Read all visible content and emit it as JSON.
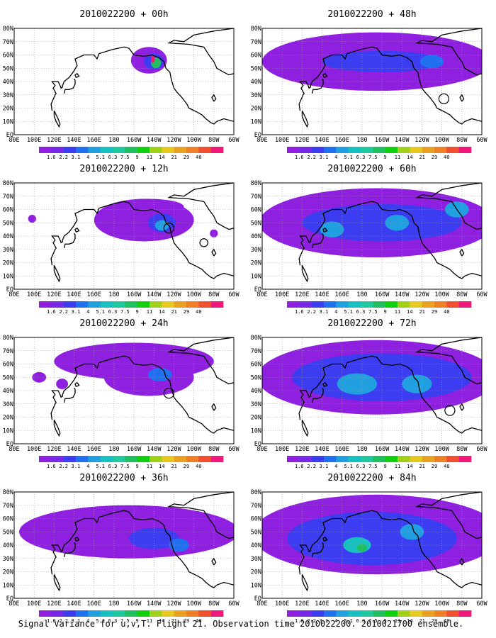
{
  "figure": {
    "caption": "Signal Variance for u,v,T. Flight 21. Observation time 2010022200. 2010021700 ensemble."
  },
  "colors": {
    "land_outline": "#000000",
    "grid": "#9a9a9a",
    "levels": [
      "#9020e0",
      "#7628e6",
      "#3c3cf0",
      "#2070f0",
      "#20a0e0",
      "#18c0c0",
      "#20c8a0",
      "#20c060",
      "#10d010",
      "#a0d018",
      "#e6c81e",
      "#eaa020",
      "#f08028",
      "#f05030",
      "#f01878"
    ]
  },
  "colorbar": {
    "labels": [
      "1.6",
      "2.2",
      "3.1",
      "4",
      "5.1",
      "6.3",
      "7.5",
      "9",
      "11",
      "14",
      "21",
      "29",
      "40"
    ]
  },
  "axes": {
    "x_ticks": [
      "80E",
      "100E",
      "120E",
      "140E",
      "160E",
      "180",
      "160W",
      "140W",
      "120W",
      "100W",
      "80W",
      "60W"
    ],
    "y_ticks": [
      "80N",
      "70N",
      "60N",
      "50N",
      "40N",
      "30N",
      "20N",
      "10N",
      "EQ"
    ]
  },
  "chart_data": [
    {
      "type": "heatmap",
      "title": "2010022200 + 00h",
      "lead_hours": 0,
      "x_range": [
        "80E",
        "60W"
      ],
      "y_range": [
        "EQ",
        "80N"
      ],
      "max_level": "40",
      "blobs": [
        {
          "lon": 215,
          "lat": 56,
          "rlon": 18,
          "rlat": 10,
          "level": 0
        },
        {
          "lon": 220,
          "lat": 55,
          "rlon": 10,
          "rlat": 6,
          "level": 2
        },
        {
          "lon": 222,
          "lat": 54,
          "rlon": 5,
          "rlat": 4,
          "level": 7
        },
        {
          "lon": 219,
          "lat": 57,
          "rlon": 2,
          "rlat": 3,
          "level": 14
        }
      ],
      "circles": []
    },
    {
      "type": "heatmap",
      "title": "2010022200 + 12h",
      "lead_hours": 12,
      "x_range": [
        "80E",
        "60W"
      ],
      "y_range": [
        "EQ",
        "80N"
      ],
      "blobs": [
        {
          "lon": 210,
          "lat": 52,
          "rlon": 50,
          "rlat": 16,
          "level": 0
        },
        {
          "lon": 215,
          "lat": 62,
          "rlon": 35,
          "rlat": 6,
          "level": 0
        },
        {
          "lon": 228,
          "lat": 50,
          "rlon": 14,
          "rlat": 7,
          "level": 2
        },
        {
          "lon": 228,
          "lat": 48,
          "rlon": 7,
          "rlat": 4,
          "level": 4
        },
        {
          "lon": 98,
          "lat": 53,
          "rlon": 4,
          "rlat": 3,
          "level": 0
        },
        {
          "lon": 280,
          "lat": 42,
          "rlon": 4,
          "rlat": 3,
          "level": 0
        }
      ],
      "circles": [
        {
          "lon": 235,
          "lat": 46,
          "r": 5
        },
        {
          "lon": 270,
          "lat": 35,
          "r": 4
        }
      ]
    },
    {
      "type": "heatmap",
      "title": "2010022200 + 24h",
      "lead_hours": 24,
      "x_range": [
        "80E",
        "60W"
      ],
      "y_range": [
        "EQ",
        "80N"
      ],
      "blobs": [
        {
          "lon": 200,
          "lat": 62,
          "rlon": 80,
          "rlat": 14,
          "level": 0
        },
        {
          "lon": 215,
          "lat": 50,
          "rlon": 45,
          "rlat": 14,
          "level": 0
        },
        {
          "lon": 226,
          "lat": 52,
          "rlon": 12,
          "rlat": 5,
          "level": 3
        },
        {
          "lon": 105,
          "lat": 50,
          "rlon": 7,
          "rlat": 4,
          "level": 0
        },
        {
          "lon": 128,
          "lat": 45,
          "rlon": 6,
          "rlat": 4,
          "level": 0
        }
      ],
      "circles": [
        {
          "lon": 235,
          "lat": 38,
          "r": 5
        }
      ]
    },
    {
      "type": "heatmap",
      "title": "2010022200 + 36h",
      "lead_hours": 36,
      "x_range": [
        "80E",
        "60W"
      ],
      "y_range": [
        "EQ",
        "80N"
      ],
      "blobs": [
        {
          "lon": 195,
          "lat": 50,
          "rlon": 110,
          "rlat": 20,
          "level": 0
        },
        {
          "lon": 220,
          "lat": 45,
          "rlon": 25,
          "rlat": 8,
          "level": 2
        },
        {
          "lon": 245,
          "lat": 40,
          "rlon": 10,
          "rlat": 5,
          "level": 3
        }
      ],
      "circles": []
    },
    {
      "type": "heatmap",
      "title": "2010022200 + 48h",
      "lead_hours": 48,
      "x_range": [
        "80E",
        "60W"
      ],
      "y_range": [
        "EQ",
        "80N"
      ],
      "blobs": [
        {
          "lon": 195,
          "lat": 55,
          "rlon": 115,
          "rlat": 22,
          "level": 0
        },
        {
          "lon": 200,
          "lat": 55,
          "rlon": 60,
          "rlat": 8,
          "level": 2
        },
        {
          "lon": 250,
          "lat": 55,
          "rlon": 12,
          "rlat": 5,
          "level": 3
        }
      ],
      "circles": [
        {
          "lon": 262,
          "lat": 27,
          "r": 5
        }
      ]
    },
    {
      "type": "heatmap",
      "title": "2010022200 + 60h",
      "lead_hours": 60,
      "x_range": [
        "80E",
        "60W"
      ],
      "y_range": [
        "EQ",
        "80N"
      ],
      "blobs": [
        {
          "lon": 195,
          "lat": 50,
          "rlon": 118,
          "rlat": 26,
          "level": 0
        },
        {
          "lon": 200,
          "lat": 50,
          "rlon": 80,
          "rlat": 14,
          "level": 2
        },
        {
          "lon": 150,
          "lat": 45,
          "rlon": 12,
          "rlat": 6,
          "level": 4
        },
        {
          "lon": 215,
          "lat": 50,
          "rlon": 12,
          "rlat": 6,
          "level": 4
        },
        {
          "lon": 275,
          "lat": 60,
          "rlon": 12,
          "rlat": 6,
          "level": 4
        }
      ],
      "circles": []
    },
    {
      "type": "heatmap",
      "title": "2010022200 + 72h",
      "lead_hours": 72,
      "x_range": [
        "80E",
        "60W"
      ],
      "y_range": [
        "EQ",
        "80N"
      ],
      "blobs": [
        {
          "lon": 195,
          "lat": 50,
          "rlon": 120,
          "rlat": 28,
          "level": 0
        },
        {
          "lon": 200,
          "lat": 50,
          "rlon": 90,
          "rlat": 18,
          "level": 2
        },
        {
          "lon": 175,
          "lat": 45,
          "rlon": 20,
          "rlat": 8,
          "level": 4
        },
        {
          "lon": 235,
          "lat": 45,
          "rlon": 15,
          "rlat": 7,
          "level": 4
        }
      ],
      "circles": [
        {
          "lon": 268,
          "lat": 25,
          "r": 5
        }
      ]
    },
    {
      "type": "heatmap",
      "title": "2010022200 + 84h",
      "lead_hours": 84,
      "x_range": [
        "80E",
        "60W"
      ],
      "y_range": [
        "EQ",
        "80N"
      ],
      "blobs": [
        {
          "lon": 195,
          "lat": 48,
          "rlon": 125,
          "rlat": 30,
          "level": 0
        },
        {
          "lon": 190,
          "lat": 45,
          "rlon": 85,
          "rlat": 20,
          "level": 2
        },
        {
          "lon": 175,
          "lat": 40,
          "rlon": 14,
          "rlat": 6,
          "level": 5
        },
        {
          "lon": 180,
          "lat": 38,
          "rlon": 5,
          "rlat": 3,
          "level": 7
        },
        {
          "lon": 230,
          "lat": 50,
          "rlon": 12,
          "rlat": 6,
          "level": 4
        }
      ],
      "circles": []
    }
  ]
}
